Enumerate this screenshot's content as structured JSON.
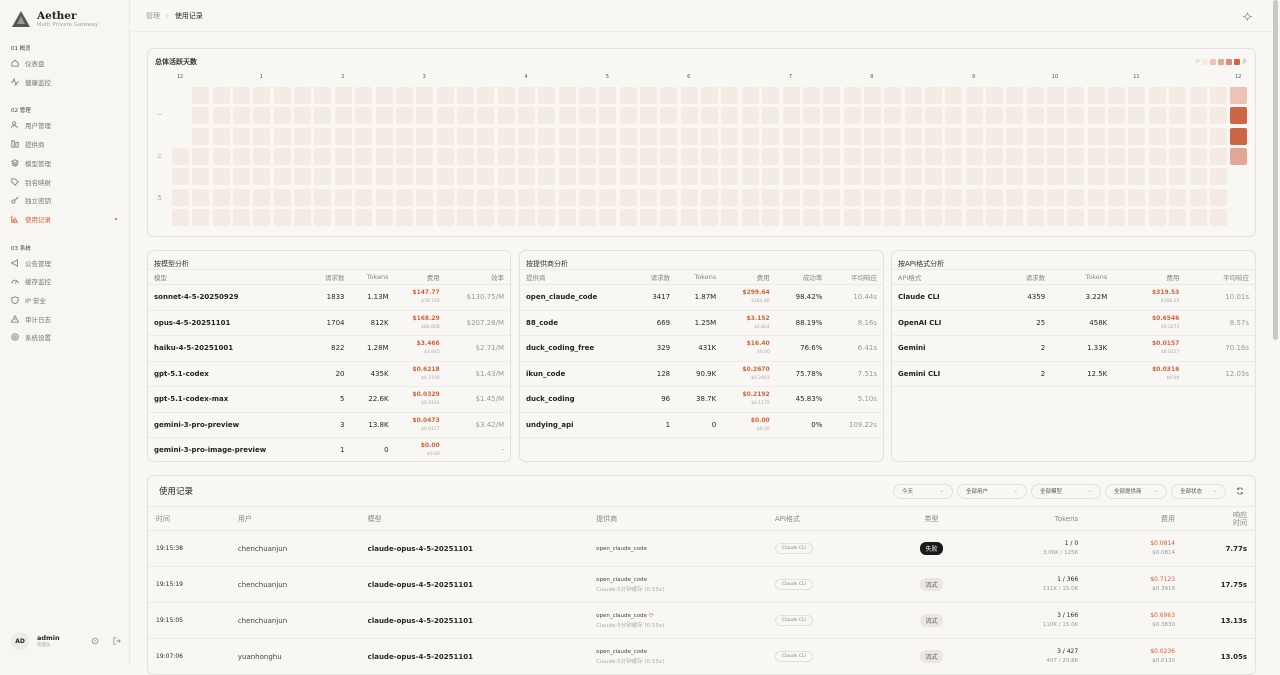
{
  "app": {
    "name": "Aether",
    "subtitle": "Multi Private Gateway"
  },
  "sidebar": {
    "sections": [
      {
        "label": "01  概览",
        "items": [
          {
            "label": "仪表盘",
            "icon": "home-icon"
          },
          {
            "label": "健康监控",
            "icon": "activity-icon"
          }
        ]
      },
      {
        "label": "02  管理",
        "items": [
          {
            "label": "用户管理",
            "icon": "users-icon"
          },
          {
            "label": "提供商",
            "icon": "provider-icon"
          },
          {
            "label": "模型管理",
            "icon": "layers-icon"
          },
          {
            "label": "别名映射",
            "icon": "tag-icon"
          },
          {
            "label": "独立密钥",
            "icon": "key-icon"
          },
          {
            "label": "使用记录",
            "icon": "bar-chart-icon",
            "active": true
          }
        ]
      },
      {
        "label": "03  系统",
        "items": [
          {
            "label": "公告管理",
            "icon": "megaphone-icon"
          },
          {
            "label": "缓存监控",
            "icon": "gauge-icon"
          },
          {
            "label": "IP 安全",
            "icon": "shield-icon"
          },
          {
            "label": "审计日志",
            "icon": "warning-icon"
          },
          {
            "label": "系统设置",
            "icon": "settings-icon"
          }
        ]
      }
    ],
    "user": {
      "initials": "AD",
      "name": "admin",
      "role": "管理员"
    }
  },
  "breadcrumb": {
    "parent": "管理",
    "current": "使用记录"
  },
  "activity": {
    "title": "总体活跃天数",
    "months": [
      "12",
      "1",
      "2",
      "3",
      "4",
      "5",
      "6",
      "7",
      "8",
      "9",
      "10",
      "11",
      "12"
    ],
    "weekdays": [
      "一",
      "三",
      "五"
    ],
    "legend_less": "少",
    "legend_more": "多",
    "last_week_levels": [
      1,
      4,
      4,
      3
    ],
    "colors": [
      "#f4ebe5",
      "#ebc4b5",
      "#e1a897",
      "#d98f7a",
      "#d3704f",
      "#cc6645"
    ]
  },
  "by_model": {
    "title": "按模型分析",
    "headers": [
      "模型",
      "请求数",
      "Tokens",
      "费用",
      "效率"
    ],
    "rows": [
      [
        "sonnet-4-5-20250929",
        "1833",
        "1.13M",
        "$147.77",
        "$78.745",
        "$130.75/M"
      ],
      [
        "opus-4-5-20251101",
        "1704",
        "812K",
        "$168.29",
        "$86.608",
        "$207.28/M"
      ],
      [
        "haiku-4-5-20251001",
        "822",
        "1.28M",
        "$3.466",
        "$2.845",
        "$2.71/M"
      ],
      [
        "gpt-5.1-codex",
        "20",
        "435K",
        "$0.6218",
        "$0.3109",
        "$1.43/M"
      ],
      [
        "gpt-5.1-codex-max",
        "5",
        "22.6K",
        "$0.0329",
        "$0.0164",
        "$1.45/M"
      ],
      [
        "gemini-3-pro-preview",
        "3",
        "13.8K",
        "$0.0473",
        "$0.0157",
        "$3.42/M"
      ],
      [
        "gemini-3-pro-image-preview",
        "1",
        "0",
        "$0.00",
        "$0.00",
        "-"
      ]
    ]
  },
  "by_provider": {
    "title": "按提供商分析",
    "headers": [
      "提供商",
      "请求数",
      "Tokens",
      "费用",
      "成功率",
      "平均响应"
    ],
    "rows": [
      [
        "open_claude_code",
        "3417",
        "1.87M",
        "$299.64",
        "$164.80",
        "98.42%",
        "10.44s"
      ],
      [
        "88_code",
        "669",
        "1.25M",
        "$3.152",
        "$2.824",
        "88.19%",
        "8.16s"
      ],
      [
        "duck_coding_free",
        "329",
        "431K",
        "$16.40",
        "$0.00",
        "76.6%",
        "6.41s"
      ],
      [
        "ikun_code",
        "128",
        "90.9K",
        "$0.2670",
        "$0.2403",
        "75.78%",
        "7.51s"
      ],
      [
        "duck_coding",
        "96",
        "38.7K",
        "$0.2192",
        "$0.1175",
        "45.83%",
        "5.10s"
      ],
      [
        "undying_api",
        "1",
        "0",
        "$0.00",
        "$0.00",
        "0%",
        "109.22s"
      ]
    ]
  },
  "by_api": {
    "title": "按API格式分析",
    "headers": [
      "API格式",
      "请求数",
      "Tokens",
      "费用",
      "平均响应"
    ],
    "rows": [
      [
        "Claude CLI",
        "4359",
        "3.22M",
        "$319.53",
        "$168.20",
        "10.01s"
      ],
      [
        "OpenAI CLI",
        "25",
        "458K",
        "$0.6546",
        "$0.3273",
        "8.57s"
      ],
      [
        "Gemini",
        "2",
        "1.33K",
        "$0.0157",
        "$0.0157",
        "70.16s"
      ],
      [
        "Gemini CLI",
        "2",
        "12.5K",
        "$0.0316",
        "$0.00",
        "12.03s"
      ]
    ]
  },
  "usage": {
    "title": "使用记录",
    "filters": [
      "今天",
      "全部用户",
      "全部模型",
      "全部提供商",
      "全部状态"
    ],
    "headers": [
      "时间",
      "用户",
      "模型",
      "提供商",
      "API格式",
      "类型",
      "Tokens",
      "费用",
      "响应\n时间"
    ],
    "rows": [
      {
        "time": "19:15:38",
        "user": "chenchuanjun",
        "model": "claude-opus-4-5-20251101",
        "provider": "open_claude_code",
        "provider_sub": "",
        "api": "Claude CLI",
        "type": "失败",
        "type_kind": "fail",
        "tokens": "1 / 0",
        "tokens_sub": "3.06K / 125K",
        "cost": "$0.0814",
        "cost_sub": "$0.0814",
        "time_resp": "7.77s"
      },
      {
        "time": "19:15:19",
        "user": "chenchuanjun",
        "model": "claude-opus-4-5-20251101",
        "provider": "open_claude_code",
        "provider_sub": "Claude-5分钟缓存 (0.55x)",
        "api": "Claude CLI",
        "type": "流式",
        "type_kind": "stream",
        "tokens": "1 / 366",
        "tokens_sub": "111K / 15.0K",
        "cost": "$0.7123",
        "cost_sub": "$0.3918",
        "time_resp": "17.75s"
      },
      {
        "time": "19:15:05",
        "user": "chenchuanjun",
        "model": "claude-opus-4-5-20251101",
        "provider": "open_claude_code",
        "provider_sub": "Claude-5分钟缓存 (0.55x)",
        "retry": true,
        "api": "Claude CLI",
        "type": "流式",
        "type_kind": "stream",
        "tokens": "3 / 166",
        "tokens_sub": "110K / 15.0K",
        "cost": "$0.6963",
        "cost_sub": "$0.3830",
        "time_resp": "13.13s"
      },
      {
        "time": "19:07:06",
        "user": "yuanhonghu",
        "model": "claude-opus-4-5-20251101",
        "provider": "open_claude_code",
        "provider_sub": "Claude-5分钟缓存 (0.55x)",
        "api": "Claude CLI",
        "type": "流式",
        "type_kind": "stream",
        "tokens": "3 / 427",
        "tokens_sub": "407 / 20.8K",
        "cost": "$0.0236",
        "cost_sub": "$0.0130",
        "time_resp": "13.05s"
      }
    ]
  }
}
